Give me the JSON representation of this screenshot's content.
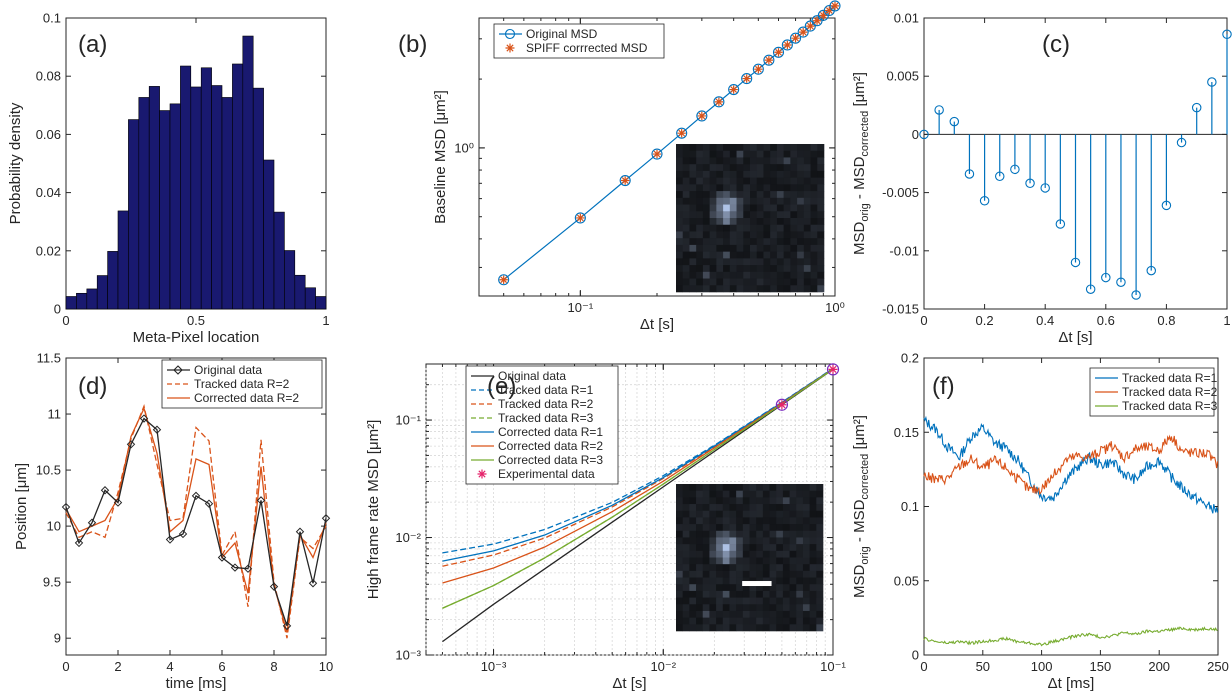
{
  "colors": {
    "hist": "#191970",
    "blue": "#0072BD",
    "orange": "#D95319",
    "green": "#77AC30",
    "black": "#262626",
    "exp": "#e5246b",
    "orig_d": "#262626"
  },
  "chart_data": [
    {
      "id": "a",
      "panel_label": "(a)",
      "type": "bar",
      "xlabel": "Meta-Pixel location",
      "ylabel": "Probability density",
      "xlim": [
        0,
        1
      ],
      "ylim": [
        0,
        0.1
      ],
      "xticks": [
        0,
        0.5,
        1
      ],
      "xtick_labels": [
        "0",
        "0.5",
        "1"
      ],
      "yticks": [
        0,
        0.02,
        0.04,
        0.06,
        0.08,
        0.1
      ],
      "ytick_labels": [
        "0",
        "0.02",
        "0.04",
        "0.06",
        "0.08",
        "0.1"
      ],
      "bin_edges": [
        0,
        0.04,
        0.08,
        0.12,
        0.16,
        0.2,
        0.24,
        0.28,
        0.32,
        0.36,
        0.4,
        0.44,
        0.48,
        0.52,
        0.56,
        0.6,
        0.64,
        0.68,
        0.72,
        0.76,
        0.8,
        0.84,
        0.88,
        0.92,
        0.96,
        1.0
      ],
      "values": [
        0.0043,
        0.0054,
        0.0069,
        0.0115,
        0.0198,
        0.0337,
        0.0651,
        0.0727,
        0.0765,
        0.0682,
        0.0705,
        0.0835,
        0.0763,
        0.0829,
        0.0768,
        0.0727,
        0.0842,
        0.0938,
        0.0759,
        0.0512,
        0.0333,
        0.0201,
        0.0116,
        0.0073,
        0.0043
      ]
    },
    {
      "id": "b",
      "panel_label": "(b)",
      "type": "scatter",
      "xscale": "log",
      "yscale": "log",
      "xlabel": "Δt [s]",
      "ylabel": "Baseline MSD [μm²]",
      "xlim": [
        0.04,
        1.0
      ],
      "ylim": [
        0.225,
        3.7
      ],
      "xticks": [
        0.1,
        1.0
      ],
      "xtick_labels": [
        "10⁻¹",
        "10⁰"
      ],
      "yticks": [
        1.0
      ],
      "ytick_labels": [
        "10⁰"
      ],
      "legend": [
        "Original MSD",
        "SPIFF corrrected MSD"
      ],
      "legend_position": "top-right",
      "x": [
        0.05,
        0.1,
        0.15,
        0.2,
        0.25,
        0.3,
        0.35,
        0.4,
        0.45,
        0.5,
        0.55,
        0.6,
        0.65,
        0.7,
        0.75,
        0.8,
        0.85,
        0.9,
        0.95,
        1.0
      ],
      "series": [
        {
          "name": "Original MSD",
          "values": [
            0.265,
            0.494,
            0.72,
            0.94,
            1.16,
            1.38,
            1.59,
            1.8,
            2.01,
            2.21,
            2.42,
            2.62,
            2.82,
            3.02,
            3.21,
            3.41,
            3.6,
            3.8,
            3.99,
            4.18
          ]
        },
        {
          "name": "SPIFF corrrected MSD",
          "values": [
            0.265,
            0.494,
            0.72,
            0.94,
            1.16,
            1.38,
            1.59,
            1.8,
            2.01,
            2.21,
            2.42,
            2.62,
            2.82,
            3.02,
            3.21,
            3.41,
            3.6,
            3.8,
            3.99,
            4.18
          ]
        }
      ]
    },
    {
      "id": "c",
      "panel_label": "(c)",
      "type": "stem",
      "xlabel": "Δt [s]",
      "ylabel_main": "MSD",
      "ylabel_sub1": "orig",
      "ylabel_mid": " - MSD",
      "ylabel_sub2": "corrected",
      "ylabel_tail": " [μm²]",
      "xlim": [
        0,
        1
      ],
      "ylim": [
        -0.015,
        0.01
      ],
      "xticks": [
        0,
        0.2,
        0.4,
        0.6,
        0.8,
        1
      ],
      "xtick_labels": [
        "0",
        "0.2",
        "0.4",
        "0.6",
        "0.8",
        "1"
      ],
      "yticks": [
        -0.015,
        -0.01,
        -0.005,
        0,
        0.005,
        0.01
      ],
      "ytick_labels": [
        "-0.015",
        "-0.01",
        "-0.005",
        "0",
        "0.005",
        "0.01"
      ],
      "x": [
        0,
        0.05,
        0.1,
        0.15,
        0.2,
        0.25,
        0.3,
        0.35,
        0.4,
        0.45,
        0.5,
        0.55,
        0.6,
        0.65,
        0.7,
        0.75,
        0.8,
        0.85,
        0.9,
        0.95,
        1.0
      ],
      "values": [
        0.0,
        0.0021,
        0.0011,
        -0.0034,
        -0.0057,
        -0.0036,
        -0.003,
        -0.0042,
        -0.0046,
        -0.0077,
        -0.011,
        -0.0133,
        -0.0123,
        -0.0127,
        -0.0138,
        -0.0117,
        -0.0061,
        -0.0007,
        0.0023,
        0.0045,
        0.0086
      ]
    },
    {
      "id": "d",
      "panel_label": "(d)",
      "type": "line",
      "xlabel": "time [ms]",
      "ylabel": "Position [μm]",
      "xlim": [
        0,
        10
      ],
      "ylim": [
        8.85,
        11.5
      ],
      "xticks": [
        0,
        2,
        4,
        6,
        8,
        10
      ],
      "xtick_labels": [
        "0",
        "2",
        "4",
        "6",
        "8",
        "10"
      ],
      "yticks": [
        9,
        9.5,
        10,
        10.5,
        11,
        11.5
      ],
      "ytick_labels": [
        "9",
        "9.5",
        "10",
        "10.5",
        "11",
        "11.5"
      ],
      "legend": [
        "Original data",
        "Tracked data R=2",
        "Corrected data R=2"
      ],
      "legend_position": "top-right",
      "series": [
        {
          "name": "Original data",
          "x": [
            0,
            0.5,
            1,
            1.5,
            2,
            2.5,
            3,
            3.5,
            4,
            4.5,
            5,
            5.5,
            6,
            6.5,
            7,
            7.5,
            8,
            8.5,
            9,
            9.5,
            10
          ],
          "values": [
            10.17,
            9.85,
            10.03,
            10.32,
            10.21,
            10.73,
            10.96,
            10.86,
            9.88,
            9.93,
            10.27,
            10.2,
            9.72,
            9.63,
            9.62,
            10.23,
            9.46,
            9.11,
            9.95,
            9.49,
            10.07
          ]
        },
        {
          "name": "Tracked data R=2",
          "x": [
            0,
            0.5,
            1,
            1.5,
            2,
            2.5,
            3,
            3.5,
            4,
            4.5,
            5,
            5.5,
            6,
            6.5,
            7,
            7.5,
            8,
            8.5,
            9,
            9.5,
            10
          ],
          "values": [
            10.12,
            9.9,
            9.95,
            9.9,
            10.3,
            10.78,
            11.07,
            10.55,
            10.05,
            10.07,
            10.88,
            10.76,
            9.74,
            9.95,
            9.28,
            10.77,
            9.5,
            9.0,
            9.9,
            9.8,
            10.0
          ]
        },
        {
          "name": "Corrected data R=2",
          "x": [
            0,
            0.5,
            1,
            1.5,
            2,
            2.5,
            3,
            3.5,
            4,
            4.5,
            5,
            5.5,
            6,
            6.5,
            7,
            7.5,
            8,
            8.5,
            9,
            9.5,
            10
          ],
          "values": [
            10.15,
            9.95,
            10.0,
            10.05,
            10.25,
            10.8,
            11.05,
            10.65,
            9.95,
            10.05,
            10.6,
            10.55,
            9.72,
            9.85,
            9.4,
            10.53,
            9.47,
            9.05,
            9.92,
            9.72,
            10.03
          ]
        }
      ]
    },
    {
      "id": "e",
      "panel_label": "(e)",
      "type": "line",
      "xscale": "log",
      "yscale": "log",
      "xlabel": "Δt [s]",
      "ylabel": "High frame rate MSD [μm²]",
      "xlim": [
        0.0004,
        0.1
      ],
      "ylim": [
        0.001,
        0.3
      ],
      "xticks": [
        0.001,
        0.01,
        0.1
      ],
      "xtick_labels": [
        "10⁻³",
        "10⁻²",
        "10⁻¹"
      ],
      "yticks": [
        0.001,
        0.01,
        0.1
      ],
      "ytick_labels": [
        "10⁻³",
        "10⁻²",
        "10⁻¹"
      ],
      "grid": true,
      "legend": [
        "Original data",
        "Tracked data R=1",
        "Tracked data R=2",
        "Tracked data R=3",
        "Corrected data R=1",
        "Corrected data R=2",
        "Corrected data R=3",
        "Experimental data"
      ],
      "legend_position": "top-left",
      "x": [
        0.0005,
        0.001,
        0.002,
        0.005,
        0.01,
        0.02,
        0.05,
        0.1
      ],
      "series": [
        {
          "name": "Original data",
          "values": [
            0.0013,
            0.0027,
            0.0054,
            0.0135,
            0.027,
            0.054,
            0.135,
            0.27
          ]
        },
        {
          "name": "Tracked data R=1",
          "values": [
            0.0074,
            0.0088,
            0.0117,
            0.0199,
            0.0336,
            0.061,
            0.142,
            0.275
          ]
        },
        {
          "name": "Tracked data R=2",
          "values": [
            0.0057,
            0.0071,
            0.0099,
            0.0182,
            0.0318,
            0.059,
            0.14,
            0.273
          ]
        },
        {
          "name": "Tracked data R=3",
          "values": [
            0.0025,
            0.0039,
            0.0067,
            0.0149,
            0.0285,
            0.056,
            0.137,
            0.271
          ]
        },
        {
          "name": "Corrected data R=1",
          "values": [
            0.0063,
            0.0077,
            0.0105,
            0.0188,
            0.0324,
            0.06,
            0.141,
            0.274
          ]
        },
        {
          "name": "Corrected data R=2",
          "values": [
            0.0041,
            0.0055,
            0.0083,
            0.0166,
            0.0302,
            0.058,
            0.139,
            0.272
          ]
        },
        {
          "name": "Corrected data R=3",
          "values": [
            0.0025,
            0.0039,
            0.0067,
            0.0149,
            0.0285,
            0.056,
            0.137,
            0.271
          ]
        }
      ],
      "experimental": {
        "name": "Experimental data",
        "x": [
          0.05,
          0.1
        ],
        "values": [
          0.135,
          0.27
        ]
      }
    },
    {
      "id": "f",
      "panel_label": "(f)",
      "type": "line",
      "xlabel": "Δt [ms]",
      "ylabel_main": "MSD",
      "ylabel_sub1": "orig",
      "ylabel_mid": " - MSD",
      "ylabel_sub2": "corrected",
      "ylabel_tail": " [μm²]",
      "xlim": [
        0,
        250
      ],
      "ylim": [
        0,
        0.2
      ],
      "xticks": [
        0,
        50,
        100,
        150,
        200,
        250
      ],
      "xtick_labels": [
        "0",
        "50",
        "100",
        "150",
        "200",
        "250"
      ],
      "yticks": [
        0,
        0.05,
        0.1,
        0.15,
        0.2
      ],
      "ytick_labels": [
        "0",
        "0.05",
        "0.1",
        "0.15",
        "0.2"
      ],
      "legend": [
        "Tracked data R=1",
        "Tracked data R=2",
        "Tracked data R=3"
      ],
      "legend_position": "top-right",
      "x": [
        0,
        10,
        20,
        30,
        40,
        50,
        60,
        70,
        80,
        90,
        100,
        110,
        120,
        130,
        140,
        150,
        160,
        170,
        180,
        190,
        200,
        210,
        220,
        230,
        240,
        250
      ],
      "series": [
        {
          "name": "Tracked data R=1",
          "values": [
            0.158,
            0.152,
            0.14,
            0.133,
            0.147,
            0.153,
            0.143,
            0.139,
            0.131,
            0.118,
            0.107,
            0.106,
            0.118,
            0.126,
            0.133,
            0.128,
            0.13,
            0.122,
            0.118,
            0.127,
            0.131,
            0.12,
            0.112,
            0.106,
            0.101,
            0.097
          ]
        },
        {
          "name": "Tracked data R=2",
          "values": [
            0.121,
            0.118,
            0.119,
            0.127,
            0.132,
            0.126,
            0.131,
            0.126,
            0.118,
            0.111,
            0.112,
            0.121,
            0.131,
            0.134,
            0.133,
            0.137,
            0.141,
            0.133,
            0.139,
            0.14,
            0.138,
            0.148,
            0.137,
            0.136,
            0.136,
            0.128
          ]
        },
        {
          "name": "Tracked data R=3",
          "values": [
            0.011,
            0.009,
            0.008,
            0.009,
            0.008,
            0.009,
            0.01,
            0.011,
            0.009,
            0.008,
            0.007,
            0.009,
            0.011,
            0.013,
            0.014,
            0.012,
            0.013,
            0.015,
            0.014,
            0.016,
            0.016,
            0.017,
            0.018,
            0.017,
            0.018,
            0.017
          ]
        }
      ]
    }
  ]
}
